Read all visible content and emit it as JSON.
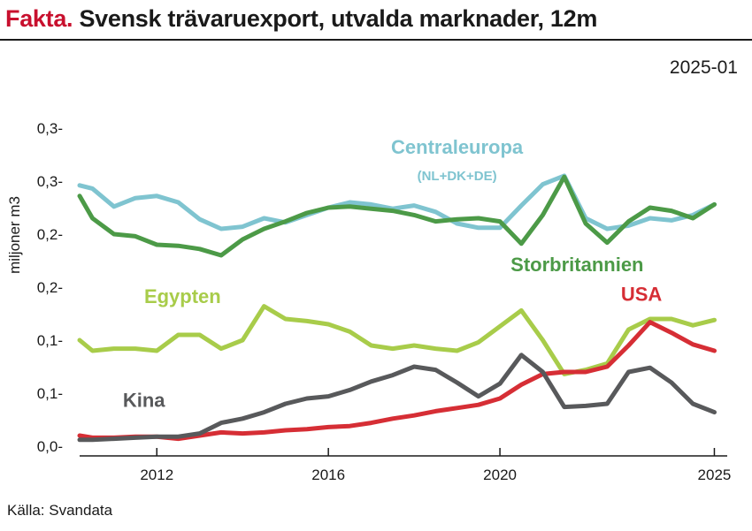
{
  "header": {
    "kicker": "Fakta.",
    "title": "Svensk trävaruexport, utvalda marknader, 12m"
  },
  "source": "Källa: Svandata",
  "chart_data": {
    "type": "line",
    "title": "Svensk trävaruexport, utvalda marknader, 12m",
    "date_label": "2025-01",
    "ylabel": "miljoner m3",
    "xlabel": "",
    "ylim": [
      0,
      0.35
    ],
    "xlim": [
      2010.2,
      2025.3
    ],
    "grid": false,
    "y_ticks": [
      {
        "value": 0.0,
        "label": "0,0-"
      },
      {
        "value": 0.05,
        "label": "0,1-"
      },
      {
        "value": 0.1,
        "label": "0,1-"
      },
      {
        "value": 0.15,
        "label": "0,2-"
      },
      {
        "value": 0.2,
        "label": "0,2-"
      },
      {
        "value": 0.25,
        "label": "0,3-"
      },
      {
        "value": 0.3,
        "label": "0,3-"
      }
    ],
    "x_ticks": [
      {
        "value": 2012,
        "label": "2012"
      },
      {
        "value": 2016,
        "label": "2016"
      },
      {
        "value": 2020,
        "label": "2020"
      },
      {
        "value": 2025,
        "label": "2025"
      }
    ],
    "series": [
      {
        "name": "Centraleuropa",
        "sublabel": "(NL+DK+DE)",
        "color": "#7fc4d0",
        "x": [
          2010.2,
          2010.5,
          2011.0,
          2011.5,
          2012.0,
          2012.5,
          2013.0,
          2013.5,
          2014.0,
          2014.5,
          2015.0,
          2015.5,
          2016.0,
          2016.5,
          2017.0,
          2017.5,
          2018.0,
          2018.5,
          2019.0,
          2019.5,
          2020.0,
          2020.5,
          2021.0,
          2021.5,
          2022.0,
          2022.5,
          2023.0,
          2023.5,
          2024.0,
          2024.5,
          2025.0
        ],
        "y": [
          0.246,
          0.243,
          0.226,
          0.234,
          0.236,
          0.23,
          0.214,
          0.205,
          0.207,
          0.215,
          0.211,
          0.218,
          0.225,
          0.23,
          0.228,
          0.224,
          0.227,
          0.221,
          0.21,
          0.206,
          0.206,
          0.227,
          0.247,
          0.255,
          0.215,
          0.205,
          0.208,
          0.215,
          0.213,
          0.218,
          0.228
        ]
      },
      {
        "name": "Storbritannien",
        "color": "#4c9a47",
        "x": [
          2010.2,
          2010.5,
          2011.0,
          2011.5,
          2012.0,
          2012.5,
          2013.0,
          2013.5,
          2014.0,
          2014.5,
          2015.0,
          2015.5,
          2016.0,
          2016.5,
          2017.0,
          2017.5,
          2018.0,
          2018.5,
          2019.0,
          2019.5,
          2020.0,
          2020.5,
          2021.0,
          2021.5,
          2022.0,
          2022.5,
          2023.0,
          2023.5,
          2024.0,
          2024.5,
          2025.0
        ],
        "y": [
          0.236,
          0.215,
          0.2,
          0.198,
          0.19,
          0.189,
          0.186,
          0.18,
          0.195,
          0.205,
          0.212,
          0.22,
          0.225,
          0.226,
          0.224,
          0.222,
          0.218,
          0.212,
          0.214,
          0.215,
          0.212,
          0.191,
          0.218,
          0.254,
          0.21,
          0.192,
          0.212,
          0.225,
          0.222,
          0.215,
          0.228
        ]
      },
      {
        "name": "Egypten",
        "color": "#a8cc4a",
        "x": [
          2010.2,
          2010.5,
          2011.0,
          2011.5,
          2012.0,
          2012.5,
          2013.0,
          2013.5,
          2014.0,
          2014.5,
          2015.0,
          2015.5,
          2016.0,
          2016.5,
          2017.0,
          2017.5,
          2018.0,
          2018.5,
          2019.0,
          2019.5,
          2020.0,
          2020.5,
          2021.0,
          2021.5,
          2022.0,
          2022.5,
          2023.0,
          2023.5,
          2024.0,
          2024.5,
          2025.0
        ],
        "y": [
          0.1,
          0.09,
          0.092,
          0.092,
          0.09,
          0.105,
          0.105,
          0.092,
          0.1,
          0.132,
          0.12,
          0.118,
          0.115,
          0.108,
          0.095,
          0.092,
          0.095,
          0.092,
          0.09,
          0.098,
          0.113,
          0.128,
          0.1,
          0.068,
          0.072,
          0.078,
          0.11,
          0.12,
          0.12,
          0.114,
          0.119
        ]
      },
      {
        "name": "USA",
        "color": "#d62e35",
        "x": [
          2010.2,
          2010.5,
          2011.0,
          2011.5,
          2012.0,
          2012.5,
          2013.0,
          2013.5,
          2014.0,
          2014.5,
          2015.0,
          2015.5,
          2016.0,
          2016.5,
          2017.0,
          2017.5,
          2018.0,
          2018.5,
          2019.0,
          2019.5,
          2020.0,
          2020.5,
          2021.0,
          2021.5,
          2022.0,
          2022.5,
          2023.0,
          2023.5,
          2024.0,
          2024.5,
          2025.0
        ],
        "y": [
          0.01,
          0.008,
          0.008,
          0.009,
          0.009,
          0.007,
          0.01,
          0.013,
          0.012,
          0.013,
          0.015,
          0.016,
          0.018,
          0.019,
          0.022,
          0.026,
          0.029,
          0.033,
          0.036,
          0.039,
          0.045,
          0.058,
          0.068,
          0.07,
          0.07,
          0.075,
          0.095,
          0.117,
          0.107,
          0.096,
          0.09
        ]
      },
      {
        "name": "Kina",
        "color": "#58595b",
        "x": [
          2010.2,
          2010.5,
          2011.0,
          2011.5,
          2012.0,
          2012.5,
          2013.0,
          2013.5,
          2014.0,
          2014.5,
          2015.0,
          2015.5,
          2016.0,
          2016.5,
          2017.0,
          2017.5,
          2018.0,
          2018.5,
          2019.0,
          2019.5,
          2020.0,
          2020.5,
          2021.0,
          2021.5,
          2022.0,
          2022.5,
          2023.0,
          2023.5,
          2024.0,
          2024.5,
          2025.0
        ],
        "y": [
          0.006,
          0.006,
          0.007,
          0.008,
          0.009,
          0.009,
          0.012,
          0.022,
          0.026,
          0.032,
          0.04,
          0.045,
          0.047,
          0.053,
          0.061,
          0.067,
          0.075,
          0.072,
          0.06,
          0.047,
          0.059,
          0.086,
          0.07,
          0.037,
          0.038,
          0.04,
          0.07,
          0.074,
          0.06,
          0.04,
          0.032
        ]
      }
    ],
    "labels": [
      {
        "series": "Centraleuropa",
        "x": 2019.0,
        "y": 0.276
      },
      {
        "series": "Storbritannien",
        "x": 2021.8,
        "y": 0.165
      },
      {
        "series": "Egypten",
        "x": 2012.6,
        "y": 0.135
      },
      {
        "series": "USA",
        "x": 2023.3,
        "y": 0.137
      },
      {
        "series": "Kina",
        "x": 2011.7,
        "y": 0.037
      }
    ]
  }
}
